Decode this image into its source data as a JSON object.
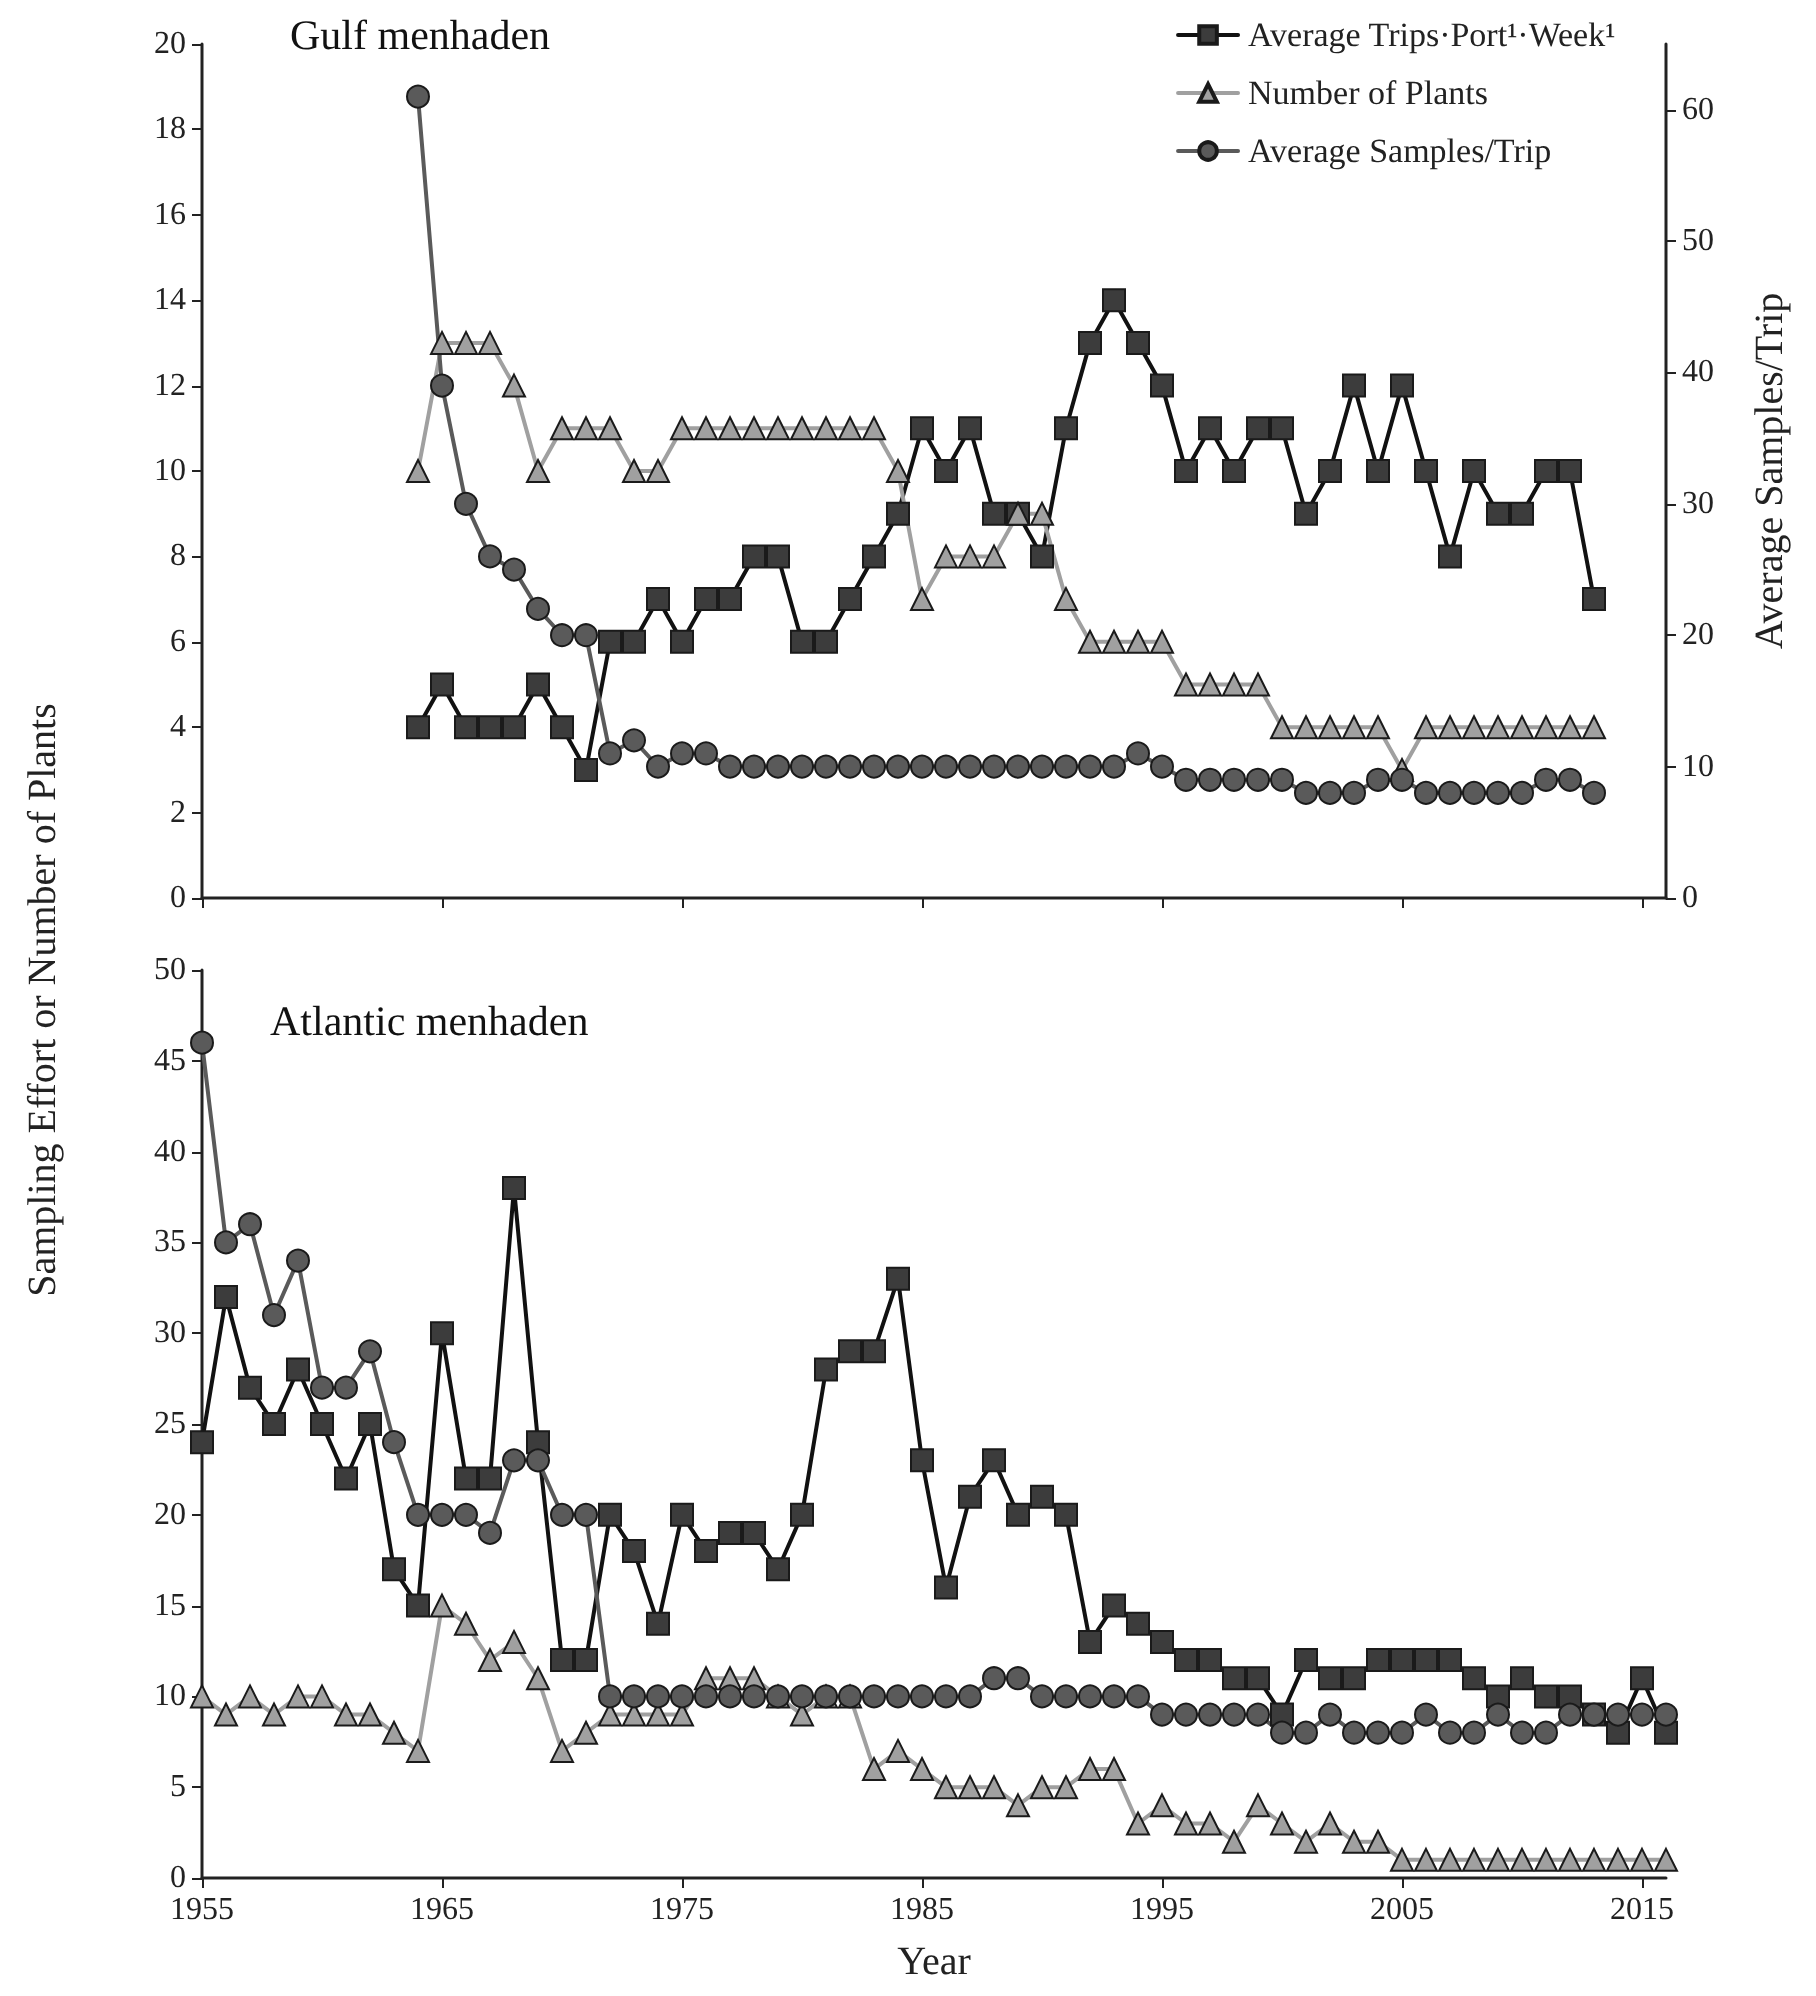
{
  "chart_data": [
    {
      "type": "line",
      "title": "Gulf menhaden",
      "y2label": "Average Samples/Trip",
      "legend": "top right",
      "tick_labels": "y",
      "line_style": "solid",
      "x": [
        1964,
        1965,
        1966,
        1967,
        1968,
        1969,
        1970,
        1971,
        1972,
        1973,
        1974,
        1975,
        1976,
        1977,
        1978,
        1979,
        1980,
        1981,
        1982,
        1983,
        1984,
        1985,
        1986,
        1987,
        1988,
        1989,
        1990,
        1991,
        1992,
        1993,
        1994,
        1995,
        1996,
        1997,
        1998,
        1999,
        2000,
        2001,
        2002,
        2003,
        2004,
        2005,
        2006,
        2007,
        2008,
        2009,
        2010,
        2011,
        2012,
        2013
      ],
      "xlim": [
        1955,
        2016
      ],
      "xticks": [
        1955,
        1965,
        1975,
        1985,
        1995,
        2005,
        2015
      ],
      "ylim": [
        0,
        20
      ],
      "yticks": [
        0,
        2,
        4,
        6,
        8,
        10,
        12,
        14,
        16,
        18,
        20
      ],
      "y2lim": [
        0,
        65
      ],
      "y2ticks": [
        0,
        10,
        20,
        30,
        40,
        50,
        60
      ],
      "series": [
        {
          "name": "Average Trips·Port¹·Week¹",
          "color": "#3c3c3c",
          "marker": "square",
          "values": [
            4,
            5,
            4,
            4,
            4,
            5,
            4,
            3,
            6,
            6,
            7,
            6,
            7,
            7,
            8,
            8,
            6,
            6,
            7,
            8,
            9,
            11,
            10,
            11,
            9,
            9,
            8,
            11,
            13,
            14,
            13,
            12,
            10,
            11,
            10,
            11,
            11,
            9,
            10,
            12,
            10,
            12,
            10,
            8,
            10,
            9,
            9,
            10,
            10,
            7
          ]
        },
        {
          "name": "Number of Plants",
          "color": "#a0a0a0",
          "marker": "triangle",
          "values": [
            10,
            13,
            13,
            13,
            12,
            10,
            11,
            11,
            11,
            10,
            10,
            11,
            11,
            11,
            11,
            11,
            11,
            11,
            11,
            11,
            10,
            7,
            8,
            8,
            8,
            9,
            9,
            7,
            6,
            6,
            6,
            6,
            5,
            5,
            5,
            5,
            4,
            4,
            4,
            4,
            4,
            3,
            4,
            4,
            4,
            4,
            4,
            4,
            4,
            4
          ]
        },
        {
          "name": "Average Samples/Trip",
          "color": "#5a5a5a",
          "marker": "circle",
          "axis": "y2",
          "values": [
            61,
            39,
            30,
            26,
            25,
            22,
            20,
            20,
            11,
            12,
            10,
            11,
            11,
            10,
            10,
            10,
            10,
            10,
            10,
            10,
            10,
            10,
            10,
            10,
            10,
            10,
            10,
            10,
            10,
            10,
            11,
            10,
            9,
            9,
            9,
            9,
            9,
            8,
            8,
            8,
            9,
            9,
            8,
            8,
            8,
            8,
            8,
            9,
            9,
            8
          ]
        }
      ]
    },
    {
      "type": "line",
      "title": "Atlantic menhaden",
      "xlabel": "Year",
      "ylabel": "Sampling Effort or Number of Plants",
      "line_style": "solid",
      "x": [
        1955,
        1956,
        1957,
        1958,
        1959,
        1960,
        1961,
        1962,
        1963,
        1964,
        1965,
        1966,
        1967,
        1968,
        1969,
        1970,
        1971,
        1972,
        1973,
        1974,
        1975,
        1976,
        1977,
        1978,
        1979,
        1980,
        1981,
        1982,
        1983,
        1984,
        1985,
        1986,
        1987,
        1988,
        1989,
        1990,
        1991,
        1992,
        1993,
        1994,
        1995,
        1996,
        1997,
        1998,
        1999,
        2000,
        2001,
        2002,
        2003,
        2004,
        2005,
        2006,
        2007,
        2008,
        2009,
        2010,
        2011,
        2012,
        2013,
        2014,
        2015,
        2016
      ],
      "xlim": [
        1955,
        2016
      ],
      "xticks": [
        1955,
        1965,
        1975,
        1985,
        1995,
        2005,
        2015
      ],
      "ylim": [
        0,
        50
      ],
      "yticks": [
        0,
        5,
        10,
        15,
        20,
        25,
        30,
        35,
        40,
        45,
        50
      ],
      "series": [
        {
          "color": "#3c3c3c",
          "marker": "square",
          "values": [
            24,
            32,
            27,
            25,
            28,
            25,
            22,
            25,
            17,
            15,
            30,
            22,
            22,
            38,
            24,
            12,
            12,
            20,
            18,
            14,
            20,
            18,
            19,
            19,
            17,
            20,
            28,
            29,
            29,
            33,
            23,
            16,
            21,
            23,
            20,
            21,
            20,
            13,
            15,
            14,
            13,
            12,
            12,
            11,
            11,
            9,
            12,
            11,
            11,
            12,
            12,
            12,
            12,
            11,
            10,
            11,
            10,
            10,
            9,
            8,
            11,
            8
          ]
        },
        {
          "color": "#a0a0a0",
          "marker": "triangle",
          "values": [
            10,
            9,
            10,
            9,
            10,
            10,
            9,
            9,
            8,
            7,
            15,
            14,
            12,
            13,
            11,
            7,
            8,
            9,
            9,
            9,
            9,
            11,
            11,
            11,
            10,
            9,
            10,
            10,
            6,
            7,
            6,
            5,
            5,
            5,
            4,
            5,
            5,
            6,
            6,
            3,
            4,
            3,
            3,
            2,
            4,
            3,
            2,
            3,
            2,
            2,
            1,
            1,
            1,
            1,
            1,
            1,
            1,
            1,
            1,
            1,
            1,
            1
          ]
        },
        {
          "color": "#5a5a5a",
          "marker": "circle",
          "values": [
            46,
            35,
            36,
            31,
            34,
            27,
            27,
            29,
            24,
            20,
            20,
            20,
            19,
            23,
            23,
            20,
            20,
            10,
            10,
            10,
            10,
            10,
            10,
            10,
            10,
            10,
            10,
            10,
            10,
            10,
            10,
            10,
            10,
            11,
            11,
            10,
            10,
            10,
            10,
            10,
            9,
            9,
            9,
            9,
            9,
            8,
            8,
            9,
            8,
            8,
            8,
            9,
            8,
            8,
            9,
            8,
            8,
            9,
            9,
            9,
            9,
            9
          ]
        }
      ]
    }
  ]
}
